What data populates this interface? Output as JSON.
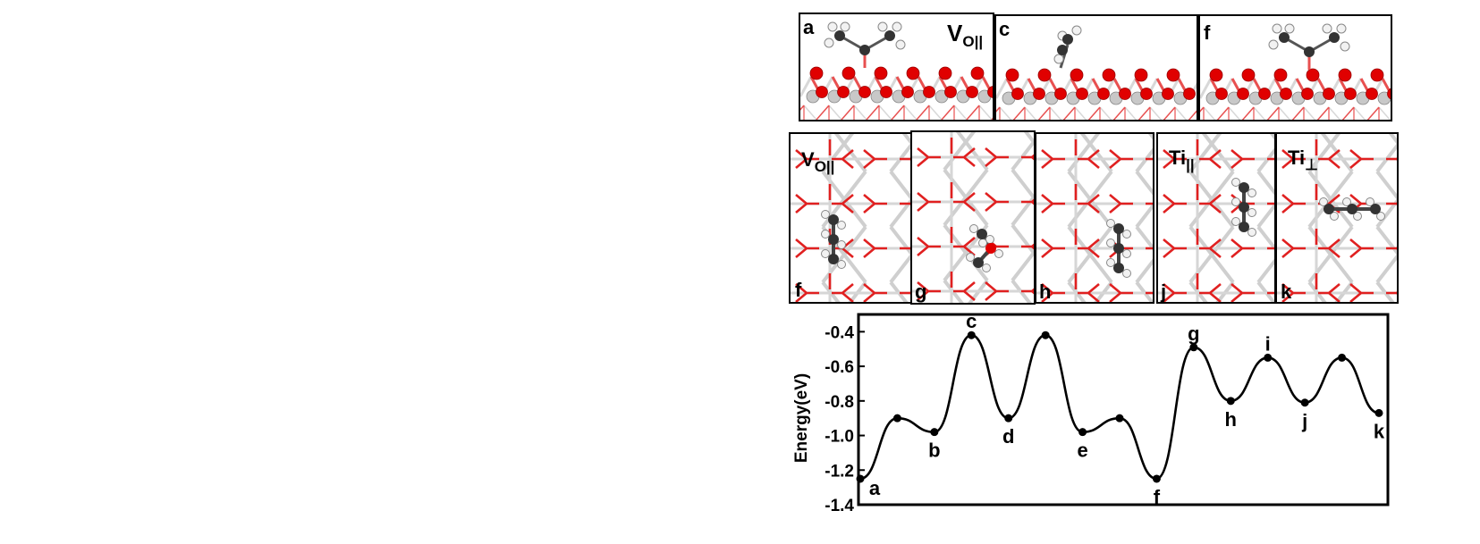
{
  "figure": {
    "top_row": {
      "panels": [
        {
          "id": "a",
          "label": "a",
          "site_main": "V",
          "site_sub": "O||"
        },
        {
          "id": "c",
          "label": "c"
        },
        {
          "id": "f",
          "label": "f"
        }
      ]
    },
    "middle_row": {
      "panels": [
        {
          "id": "f",
          "label": "f",
          "site_main": "V",
          "site_sub": "O||"
        },
        {
          "id": "g",
          "label": "g"
        },
        {
          "id": "h",
          "label": "h"
        },
        {
          "id": "j",
          "label": "j",
          "site_main": "Ti",
          "site_sub": "||"
        },
        {
          "id": "k",
          "label": "k",
          "site_main": "Ti",
          "site_sub": "⊥"
        }
      ]
    },
    "colors": {
      "oxygen": "#e00000",
      "titanium": "#c8c8c8",
      "carbon": "#333333",
      "hydrogen": "#f2f2f2",
      "curve": "#000000"
    }
  },
  "chart_data": {
    "type": "line",
    "title": "",
    "xlabel": "",
    "ylabel": "Energy(eV)",
    "ylim": [
      -1.4,
      -0.3
    ],
    "yticks": [
      -0.4,
      -0.6,
      -0.8,
      -1.0,
      -1.2,
      -1.4
    ],
    "ytick_labels": [
      "-0.4",
      "-0.6",
      "-0.8",
      "-1.0",
      "-1.2",
      "-1.4"
    ],
    "points": [
      {
        "x": 0,
        "y": -1.25,
        "label": "a"
      },
      {
        "x": 1,
        "y": -0.9,
        "label": ""
      },
      {
        "x": 2,
        "y": -0.98,
        "label": "b"
      },
      {
        "x": 3,
        "y": -0.42,
        "label": "c"
      },
      {
        "x": 4,
        "y": -0.9,
        "label": "d"
      },
      {
        "x": 5,
        "y": -0.42,
        "label": ""
      },
      {
        "x": 6,
        "y": -0.98,
        "label": "e"
      },
      {
        "x": 7,
        "y": -0.9,
        "label": ""
      },
      {
        "x": 8,
        "y": -1.25,
        "label": "f"
      },
      {
        "x": 9,
        "y": -0.49,
        "label": "g"
      },
      {
        "x": 10,
        "y": -0.8,
        "label": "h"
      },
      {
        "x": 11,
        "y": -0.55,
        "label": "i"
      },
      {
        "x": 12,
        "y": -0.81,
        "label": "j"
      },
      {
        "x": 13,
        "y": -0.55,
        "label": ""
      },
      {
        "x": 14,
        "y": -0.87,
        "label": "k"
      }
    ]
  }
}
